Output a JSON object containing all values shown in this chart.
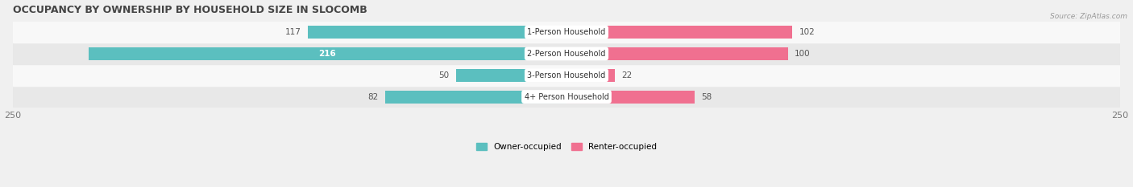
{
  "title": "OCCUPANCY BY OWNERSHIP BY HOUSEHOLD SIZE IN SLOCOMB",
  "source": "Source: ZipAtlas.com",
  "categories": [
    "4+ Person Household",
    "3-Person Household",
    "2-Person Household",
    "1-Person Household"
  ],
  "owner_values": [
    82,
    50,
    216,
    117
  ],
  "renter_values": [
    58,
    22,
    100,
    102
  ],
  "owner_label_inside": [
    false,
    false,
    true,
    false
  ],
  "max_scale": 250,
  "owner_color": "#5BBFBF",
  "renter_color": "#F07090",
  "owner_label": "Owner-occupied",
  "renter_label": "Renter-occupied",
  "bg_color": "#f0f0f0",
  "row_colors": [
    "#e8e8e8",
    "#f8f8f8",
    "#e8e8e8",
    "#f8f8f8"
  ],
  "bar_height": 0.6,
  "title_fontsize": 9,
  "label_fontsize": 7.5,
  "axis_label_fontsize": 8
}
